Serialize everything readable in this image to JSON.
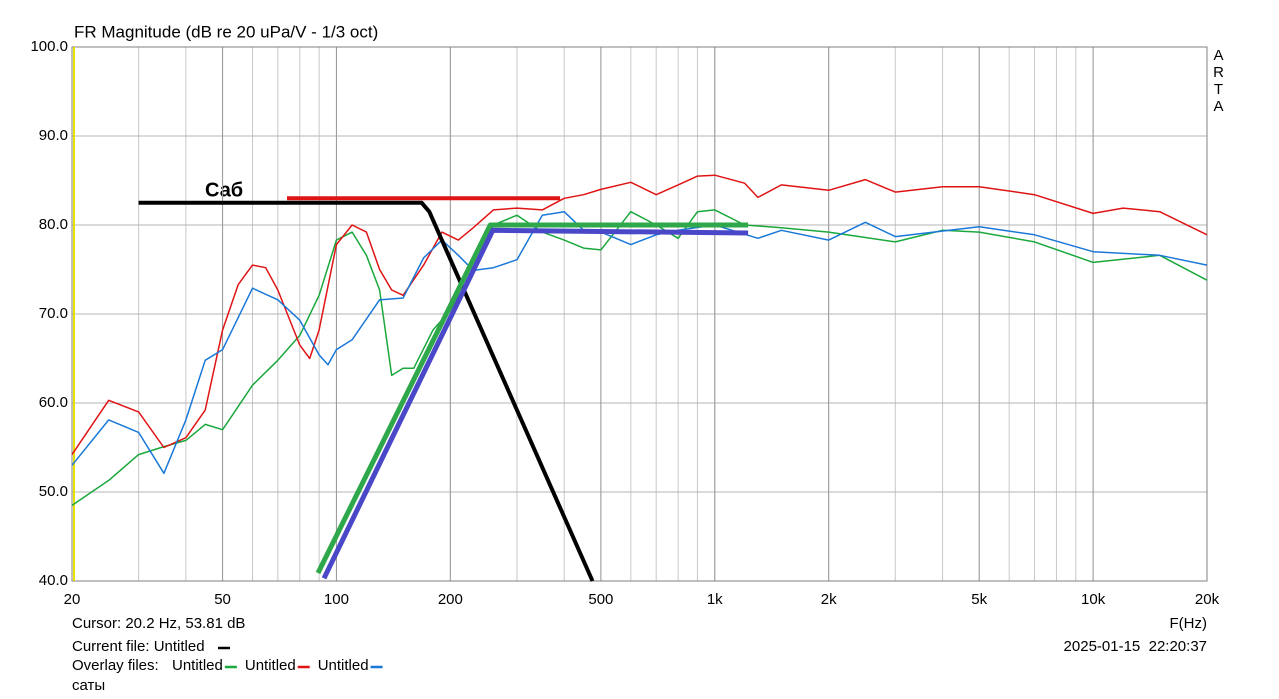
{
  "chart_data": {
    "type": "line",
    "title": "FR Magnitude (dB re 20 uPa/V - 1/3 oct)",
    "watermark": "ARTA",
    "xlabel": "F(Hz)",
    "xscale": "log",
    "xlim": [
      20,
      20000
    ],
    "ylim": [
      40,
      100
    ],
    "xticks": [
      20,
      50,
      100,
      200,
      500,
      {
        "value": 1000,
        "label": "1k"
      },
      {
        "value": 2000,
        "label": "2k"
      },
      {
        "value": 5000,
        "label": "5k"
      },
      {
        "value": 10000,
        "label": "10k"
      },
      {
        "value": 20000,
        "label": "20k"
      }
    ],
    "yticks": [
      {
        "value": 40,
        "label": "40.0"
      },
      {
        "value": 50,
        "label": "50.0"
      },
      {
        "value": 60,
        "label": "60.0"
      },
      {
        "value": 70,
        "label": "70.0"
      },
      {
        "value": 80,
        "label": "80.0"
      },
      {
        "value": 90,
        "label": "90.0"
      },
      {
        "value": 100,
        "label": "100.0"
      }
    ],
    "grid": true,
    "series": [
      {
        "name": "Untitled",
        "color": "#1aa83c",
        "width": 1.5,
        "x": [
          20,
          25,
          30,
          35,
          40,
          45,
          50,
          60,
          70,
          80,
          90,
          100,
          110,
          120,
          130,
          140,
          150,
          160,
          180,
          200,
          230,
          260,
          300,
          350,
          400,
          450,
          500,
          600,
          700,
          800,
          900,
          1000,
          1200,
          1500,
          2000,
          3000,
          4000,
          5000,
          7000,
          10000,
          15000,
          20000
        ],
        "values": [
          48.5,
          51.3,
          54.2,
          55.1,
          55.8,
          57.6,
          57,
          62,
          64.8,
          67.6,
          72.1,
          78.3,
          79.2,
          76.6,
          72.7,
          63.1,
          63.9,
          63.9,
          68.2,
          70.4,
          74.9,
          80,
          81.1,
          79.2,
          78.3,
          77.4,
          77.2,
          81.5,
          80,
          78.5,
          81.5,
          81.7,
          80,
          79.7,
          79.2,
          78.1,
          79.4,
          79.2,
          78.1,
          75.8,
          76.6,
          73.8
        ]
      },
      {
        "name": "Untitled",
        "color": "#e01414",
        "width": 1.5,
        "x": [
          20,
          25,
          30,
          35,
          40,
          45,
          50,
          55,
          60,
          65,
          70,
          80,
          85,
          90,
          100,
          110,
          120,
          130,
          140,
          150,
          170,
          190,
          210,
          230,
          260,
          300,
          350,
          400,
          450,
          500,
          600,
          700,
          800,
          900,
          1000,
          1200,
          1300,
          1500,
          2000,
          2500,
          3000,
          4000,
          5000,
          7000,
          10000,
          12000,
          15000,
          20000
        ],
        "values": [
          54.2,
          60.3,
          59,
          55,
          56.1,
          59.2,
          68.2,
          73.3,
          75.5,
          75.2,
          72.7,
          66.5,
          65,
          68.2,
          77.8,
          80,
          79.2,
          75,
          72.7,
          72.1,
          75.5,
          79.2,
          78.3,
          79.7,
          81.7,
          81.9,
          81.7,
          83,
          83.4,
          84,
          84.8,
          83.4,
          84.5,
          85.5,
          85.6,
          84.7,
          83.1,
          84.5,
          83.9,
          85.1,
          83.7,
          84.3,
          84.3,
          83.4,
          81.3,
          81.9,
          81.5,
          78.9
        ]
      },
      {
        "name": "Untitled",
        "color": "#1a78d8",
        "width": 1.5,
        "x": [
          20,
          25,
          30,
          35,
          40,
          45,
          50,
          60,
          70,
          80,
          90,
          95,
          100,
          110,
          130,
          150,
          170,
          190,
          210,
          230,
          260,
          300,
          350,
          400,
          450,
          500,
          600,
          700,
          800,
          1000,
          1300,
          1500,
          2000,
          2500,
          3000,
          5000,
          7000,
          10000,
          15000,
          20000
        ],
        "values": [
          53,
          58.1,
          56.7,
          52.1,
          58.1,
          64.8,
          66,
          72.9,
          71.6,
          69.3,
          65.4,
          64.3,
          66,
          67.1,
          71.6,
          71.8,
          76.3,
          78.3,
          76.6,
          74.9,
          75.2,
          76.1,
          81.1,
          81.5,
          79.4,
          79.2,
          77.8,
          78.9,
          79.4,
          80,
          78.5,
          79.4,
          78.3,
          80.3,
          78.7,
          79.8,
          78.9,
          77,
          76.6,
          75.5
        ]
      },
      {
        "color": "#000000",
        "width": 4,
        "x": [
          30,
          168,
          176,
          475
        ],
        "values": [
          82.5,
          82.5,
          81.5,
          40
        ]
      },
      {
        "color": "#e01414",
        "width": 4,
        "x": [
          74,
          390
        ],
        "values": [
          83,
          83
        ]
      },
      {
        "color": "#2ea84a",
        "width": 5,
        "x": [
          89.4,
          255,
          1225
        ],
        "values": [
          40.9,
          80,
          80
        ]
      },
      {
        "color": "#4a48c8",
        "width": 5,
        "x": [
          92.7,
          259,
          1225
        ],
        "values": [
          40.3,
          79.4,
          79.1
        ]
      }
    ],
    "annotations": [
      "Саб",
      "саты"
    ],
    "cursor": "Cursor: 20.2 Hz, 53.81 dB",
    "current_file": "Current file: Untitled",
    "overlay_label": "Overlay files:",
    "timestamp": "2025-01-15  22:20:37"
  }
}
